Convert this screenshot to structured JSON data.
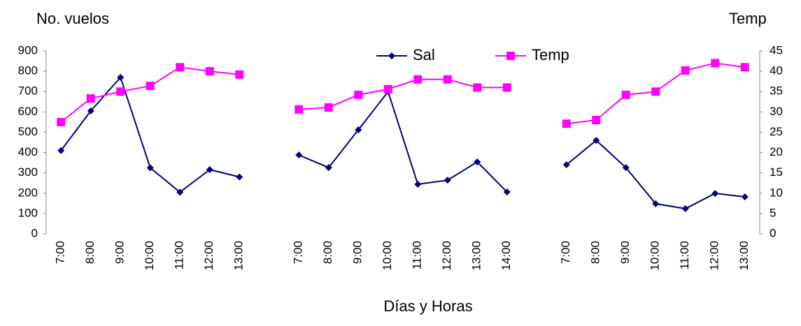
{
  "chart_data": {
    "type": "line",
    "y_label": "No. vuelos",
    "y2_label": "Temp",
    "x_label": "Días y Horas",
    "categories": [
      "7:00",
      "8:00",
      "9:00",
      "10:00",
      "11:00",
      "12:00",
      "13:00",
      null,
      "7:00",
      "8:00",
      "9:00",
      "10:00",
      "11:00",
      "12:00",
      "13:00",
      "14:00",
      null,
      "7:00",
      "8:00",
      "9:00",
      "10:00",
      "11:00",
      "12:00",
      "13:00"
    ],
    "series": [
      {
        "name": "Sal",
        "color": "#000080",
        "marker": "diamond",
        "values": [
          410,
          605,
          770,
          325,
          205,
          316,
          280,
          null,
          388,
          326,
          512,
          700,
          244,
          264,
          354,
          206,
          null,
          340,
          460,
          326,
          148,
          124,
          199,
          182
        ]
      },
      {
        "name": "Temp",
        "color": "#ff00ff",
        "marker": "square",
        "axis": "y2",
        "values": [
          27.5,
          33.3,
          35,
          36.4,
          41,
          40,
          39.2,
          null,
          30.6,
          31.1,
          34.2,
          35.6,
          38,
          38,
          36,
          36,
          null,
          27.1,
          28,
          34.2,
          35,
          40.2,
          42,
          41
        ]
      }
    ],
    "ylim": [
      0,
      900
    ],
    "yticks": [
      0,
      100,
      200,
      300,
      400,
      500,
      600,
      700,
      800,
      900
    ],
    "y2lim": [
      0,
      45
    ],
    "y2ticks": [
      0,
      5,
      10,
      15,
      20,
      25,
      30,
      35,
      40,
      45
    ],
    "grid": false
  }
}
